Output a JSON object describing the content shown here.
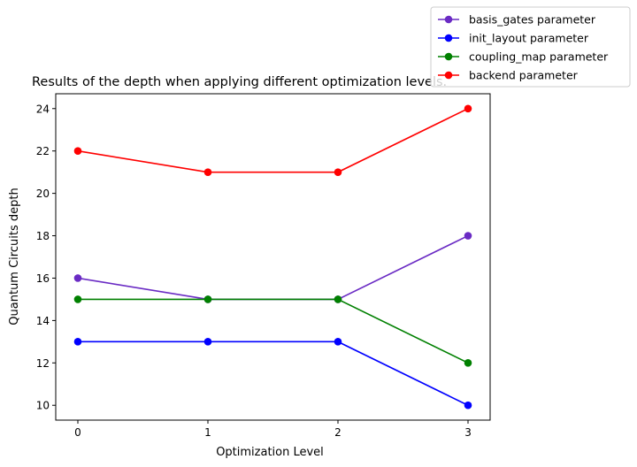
{
  "chart_data": {
    "type": "line",
    "title": "Results of the depth when applying different optimization levels.",
    "xlabel": "Optimization Level",
    "ylabel": "Quantum Circuits depth",
    "x": [
      0,
      1,
      2,
      3
    ],
    "xlim": [
      -0.17,
      3.17
    ],
    "ylim": [
      9.3,
      24.7
    ],
    "xticks": [
      "0",
      "1",
      "2",
      "3"
    ],
    "yticks": [
      "10",
      "12",
      "14",
      "16",
      "18",
      "20",
      "22",
      "24"
    ],
    "grid": false,
    "legend_position": "top-right (outside plot area)",
    "series": [
      {
        "name": "basis_gates parameter",
        "color": "#6a2bc4",
        "values": [
          16,
          15,
          15,
          18
        ]
      },
      {
        "name": "init_layout parameter",
        "color": "#0000ff",
        "values": [
          13,
          13,
          13,
          10
        ]
      },
      {
        "name": "coupling_map parameter",
        "color": "#008000",
        "values": [
          15,
          15,
          15,
          12
        ]
      },
      {
        "name": "backend parameter",
        "color": "#ff0000",
        "values": [
          22,
          21,
          21,
          24
        ]
      }
    ]
  }
}
